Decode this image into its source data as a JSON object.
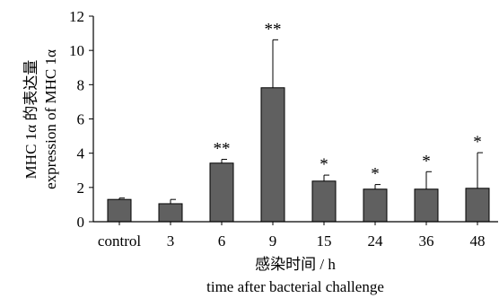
{
  "chart_data": {
    "type": "bar",
    "categories": [
      "control",
      "3",
      "6",
      "9",
      "15",
      "24",
      "36",
      "48"
    ],
    "values": [
      1.3,
      1.05,
      3.42,
      7.82,
      2.37,
      1.9,
      1.9,
      1.95
    ],
    "errors": [
      0.08,
      0.25,
      0.22,
      2.8,
      0.35,
      0.27,
      1.02,
      2.08
    ],
    "significance": [
      "",
      "",
      "**",
      "**",
      "*",
      "*",
      "*",
      "*"
    ],
    "ylim": [
      0,
      12
    ],
    "yticks": [
      0,
      2,
      4,
      6,
      8,
      10,
      12
    ],
    "ylabel_line1": "MHC 1α 的表达量",
    "ylabel_line2": "expression of MHC 1α",
    "xlabel_line1": "感染时间 / h",
    "xlabel_line2": "time after bacterial challenge",
    "bar_color": "#606060",
    "grid": false,
    "legend": "none"
  }
}
